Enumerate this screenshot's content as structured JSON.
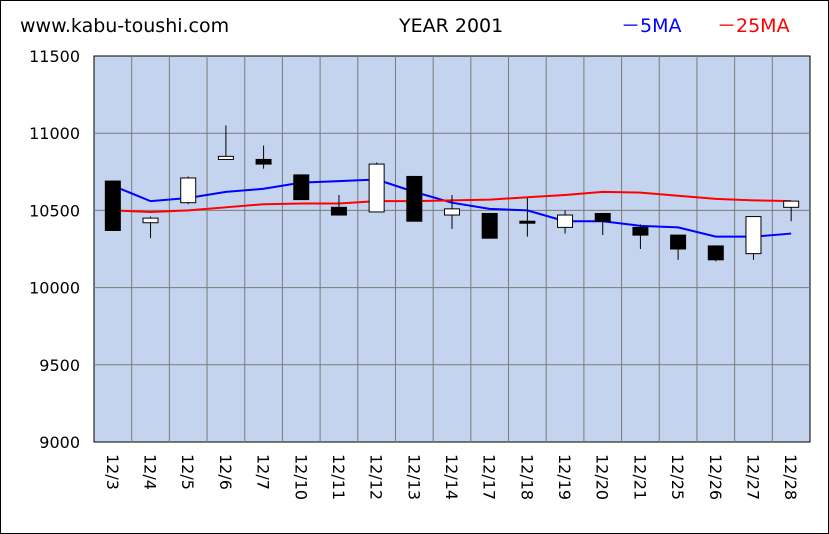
{
  "header": {
    "site": "www.kabu-toushi.com",
    "title": "YEAR 2001",
    "legend_5ma": "－5MA",
    "legend_25ma": "－25MA"
  },
  "colors": {
    "plot_bg": "#c4d4ee",
    "grid": "#7a7a7a",
    "ma5": "#0000ff",
    "ma25": "#ff0000",
    "candle_up": "#ffffff",
    "candle_down": "#000000"
  },
  "chart_data": {
    "type": "candlestick",
    "title": "YEAR 2001",
    "ylim": [
      9000,
      11500
    ],
    "yticks": [
      9000,
      9500,
      10000,
      10500,
      11000,
      11500
    ],
    "grid": true,
    "legend_position": "top-right",
    "categories": [
      "12/3",
      "12/4",
      "12/5",
      "12/6",
      "12/7",
      "12/10",
      "12/11",
      "12/12",
      "12/13",
      "12/14",
      "12/17",
      "12/18",
      "12/19",
      "12/20",
      "12/21",
      "12/25",
      "12/26",
      "12/27",
      "12/28"
    ],
    "ohlc": [
      {
        "open": 10690,
        "high": 10690,
        "low": 10370,
        "close": 10370
      },
      {
        "open": 10420,
        "high": 10460,
        "low": 10320,
        "close": 10450
      },
      {
        "open": 10550,
        "high": 10720,
        "low": 10540,
        "close": 10710
      },
      {
        "open": 10830,
        "high": 11050,
        "low": 10830,
        "close": 10850
      },
      {
        "open": 10830,
        "high": 10920,
        "low": 10770,
        "close": 10800
      },
      {
        "open": 10730,
        "high": 10730,
        "low": 10570,
        "close": 10570
      },
      {
        "open": 10520,
        "high": 10600,
        "low": 10470,
        "close": 10470
      },
      {
        "open": 10490,
        "high": 10810,
        "low": 10490,
        "close": 10800
      },
      {
        "open": 10720,
        "high": 10720,
        "low": 10430,
        "close": 10430
      },
      {
        "open": 10470,
        "high": 10600,
        "low": 10380,
        "close": 10510
      },
      {
        "open": 10480,
        "high": 10480,
        "low": 10320,
        "close": 10320
      },
      {
        "open": 10430,
        "high": 10580,
        "low": 10330,
        "close": 10420
      },
      {
        "open": 10390,
        "high": 10500,
        "low": 10350,
        "close": 10470
      },
      {
        "open": 10480,
        "high": 10480,
        "low": 10340,
        "close": 10430
      },
      {
        "open": 10390,
        "high": 10410,
        "low": 10250,
        "close": 10340
      },
      {
        "open": 10340,
        "high": 10340,
        "low": 10180,
        "close": 10250
      },
      {
        "open": 10270,
        "high": 10270,
        "low": 10170,
        "close": 10180
      },
      {
        "open": 10220,
        "high": 10460,
        "low": 10180,
        "close": 10460
      },
      {
        "open": 10520,
        "high": 10560,
        "low": 10430,
        "close": 10560
      }
    ],
    "series": [
      {
        "name": "5MA",
        "values": [
          10660,
          10560,
          10580,
          10620,
          10640,
          10680,
          10690,
          10700,
          10620,
          10550,
          10510,
          10500,
          10430,
          10430,
          10400,
          10390,
          10330,
          10330,
          10350
        ]
      },
      {
        "name": "25MA",
        "values": [
          10500,
          10490,
          10500,
          10520,
          10540,
          10545,
          10545,
          10560,
          10560,
          10565,
          10570,
          10585,
          10600,
          10620,
          10615,
          10595,
          10575,
          10565,
          10560
        ]
      }
    ]
  }
}
